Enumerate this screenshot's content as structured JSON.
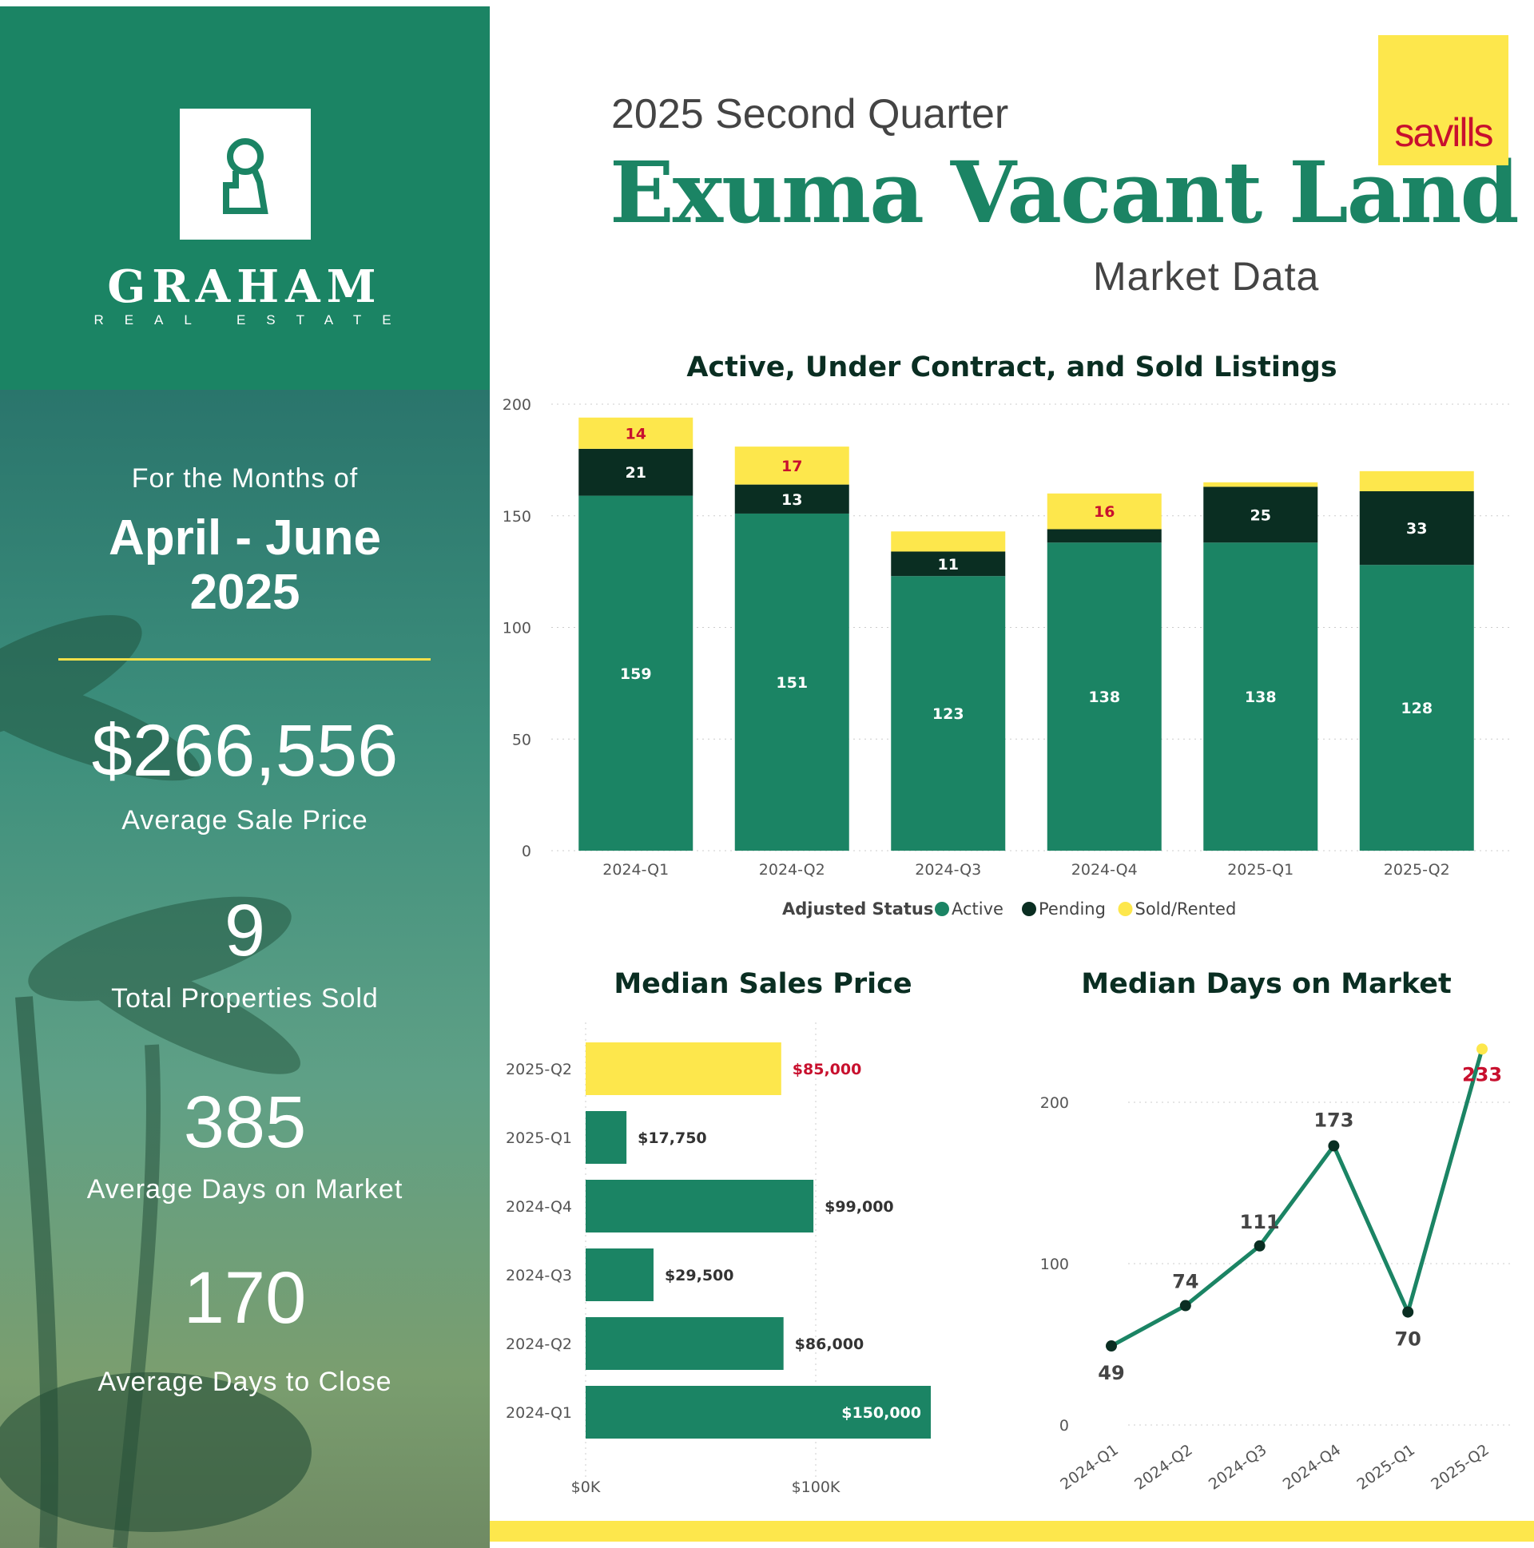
{
  "brand": {
    "name": "GRAHAM",
    "sub": "REAL ESTATE",
    "icon": "keyhole-icon"
  },
  "partner": {
    "name": "savills"
  },
  "header": {
    "kicker": "2025 Second Quarter",
    "title": "Exuma Vacant Land",
    "subtitle": "Market Data"
  },
  "period": {
    "intro": "For the Months of",
    "months": "April - June",
    "year": "2025"
  },
  "stats": [
    {
      "value": "$266,556",
      "label": "Average Sale Price"
    },
    {
      "value": "9",
      "label": "Total Properties Sold"
    },
    {
      "value": "385",
      "label": "Average Days on Market"
    },
    {
      "value": "170",
      "label": "Average Days to Close"
    }
  ],
  "colors": {
    "green": "#1b8464",
    "dark": "#0a2e22",
    "yellow": "#fde74c",
    "red": "#c8102e"
  },
  "chart_data": [
    {
      "type": "bar",
      "stacked": true,
      "title": "Active, Under Contract, and Sold Listings",
      "categories": [
        "2024-Q1",
        "2024-Q2",
        "2024-Q3",
        "2024-Q4",
        "2025-Q1",
        "2025-Q2"
      ],
      "series": [
        {
          "name": "Active",
          "values": [
            159,
            151,
            123,
            138,
            138,
            128
          ],
          "labels": [
            "159",
            "151",
            "123",
            "138",
            "138",
            "128"
          ],
          "color": "#1b8464"
        },
        {
          "name": "Pending",
          "values": [
            21,
            13,
            11,
            6,
            25,
            33
          ],
          "labels": [
            "21",
            "13",
            "11",
            "",
            "25",
            "33"
          ],
          "color": "#0a2e22"
        },
        {
          "name": "Sold/Rented",
          "values": [
            14,
            17,
            9,
            16,
            2,
            9
          ],
          "labels": [
            "14",
            "17",
            "",
            "16",
            "",
            ""
          ],
          "color": "#fde74c"
        }
      ],
      "ylim": [
        0,
        200
      ],
      "yticks": [
        "0",
        "50",
        "100",
        "150",
        "200"
      ],
      "legend_title": "Adjusted Status",
      "legend_position": "bottom"
    },
    {
      "type": "bar",
      "orientation": "horizontal",
      "title": "Median Sales Price",
      "categories": [
        "2025-Q2",
        "2025-Q1",
        "2024-Q4",
        "2024-Q3",
        "2024-Q2",
        "2024-Q1"
      ],
      "values": [
        85000,
        17750,
        99000,
        29500,
        86000,
        150000
      ],
      "labels": [
        "$85,000",
        "$17,750",
        "$99,000",
        "$29,500",
        "$86,000",
        "$150,000"
      ],
      "xticks": [
        "$0K",
        "$100K"
      ],
      "xlim": [
        0,
        150000
      ]
    },
    {
      "type": "line",
      "title": "Median Days on Market",
      "categories": [
        "2024-Q1",
        "2024-Q2",
        "2024-Q3",
        "2024-Q4",
        "2025-Q1",
        "2025-Q2"
      ],
      "values": [
        49,
        74,
        111,
        173,
        70,
        233
      ],
      "labels": [
        "49",
        "74",
        "111",
        "173",
        "70",
        "233"
      ],
      "yticks": [
        "0",
        "100",
        "200"
      ],
      "ylim": [
        0,
        233
      ]
    }
  ]
}
